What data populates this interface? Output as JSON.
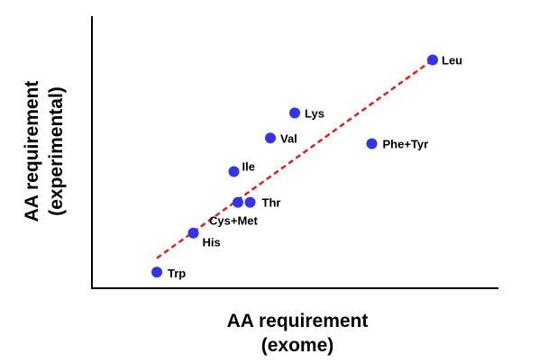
{
  "chart_data": {
    "type": "scatter",
    "title": "",
    "xlabel_lines": [
      "AA requirement",
      "(exome)"
    ],
    "ylabel_lines": [
      "AA requirement",
      "(experimental)"
    ],
    "xlim": [
      0,
      10
    ],
    "ylim": [
      0,
      10
    ],
    "grid": false,
    "ticks": false,
    "points": [
      {
        "label": "Leu",
        "x": 8.4,
        "y": 8.5
      },
      {
        "label": "Lys",
        "x": 5.0,
        "y": 6.6
      },
      {
        "label": "Val",
        "x": 4.4,
        "y": 5.7
      },
      {
        "label": "Phe+Tyr",
        "x": 6.9,
        "y": 5.5
      },
      {
        "label": "Ile",
        "x": 3.5,
        "y": 4.5
      },
      {
        "label": "Thr",
        "x": 3.9,
        "y": 3.4
      },
      {
        "label": "Cys+Met",
        "x": 3.6,
        "y": 3.4
      },
      {
        "label": "His",
        "x": 2.5,
        "y": 2.3
      },
      {
        "label": "Trp",
        "x": 1.6,
        "y": 0.9
      }
    ],
    "trendline": {
      "x": [
        1.6,
        8.4
      ],
      "y": [
        1.4,
        8.5
      ],
      "style": "dashed",
      "color": "#e0201c"
    },
    "point_color": "#3333ee"
  }
}
